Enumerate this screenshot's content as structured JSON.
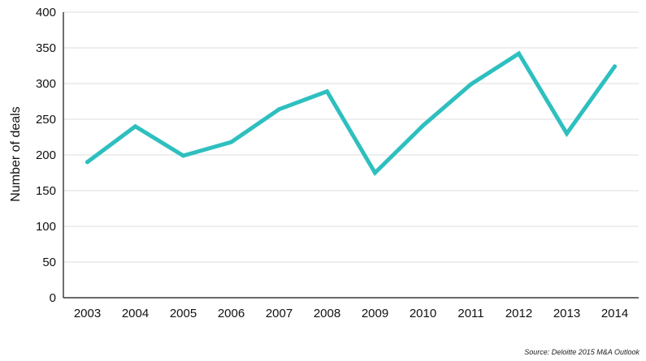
{
  "chart_data": {
    "type": "line",
    "categories": [
      "2003",
      "2004",
      "2005",
      "2006",
      "2007",
      "2008",
      "2009",
      "2010",
      "2011",
      "2012",
      "2013",
      "2014"
    ],
    "series": [
      {
        "values": [
          190,
          240,
          199,
          218,
          264,
          289,
          175,
          241,
          299,
          342,
          230,
          324
        ]
      }
    ],
    "ylabel": "Number of deals",
    "ylim": [
      0,
      400
    ],
    "yticks": [
      0,
      50,
      100,
      150,
      200,
      250,
      300,
      350,
      400
    ],
    "grid": true,
    "line_color": "#2ebfbf"
  },
  "source": "Source: Deloitte 2015 M&A Outlook"
}
